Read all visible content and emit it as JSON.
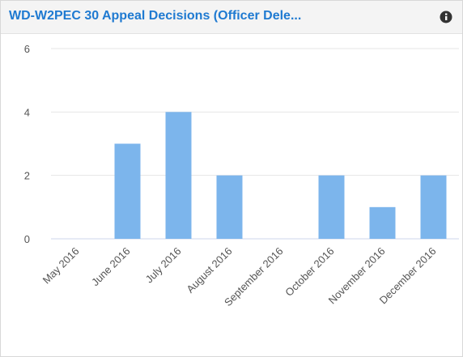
{
  "header": {
    "title": "WD-W2PEC 30 Appeal Decisions (Officer Dele..."
  },
  "chart_data": {
    "type": "bar",
    "categories": [
      "May 2016",
      "June 2016",
      "July 2016",
      "August 2016",
      "September 2016",
      "October 2016",
      "November 2016",
      "December 2016"
    ],
    "values": [
      0,
      3,
      4,
      2,
      0,
      2,
      1,
      2
    ],
    "color": "#7cb5ec",
    "ylim": [
      0,
      6
    ],
    "yticks": [
      0,
      2,
      4,
      6
    ],
    "grid": true
  }
}
